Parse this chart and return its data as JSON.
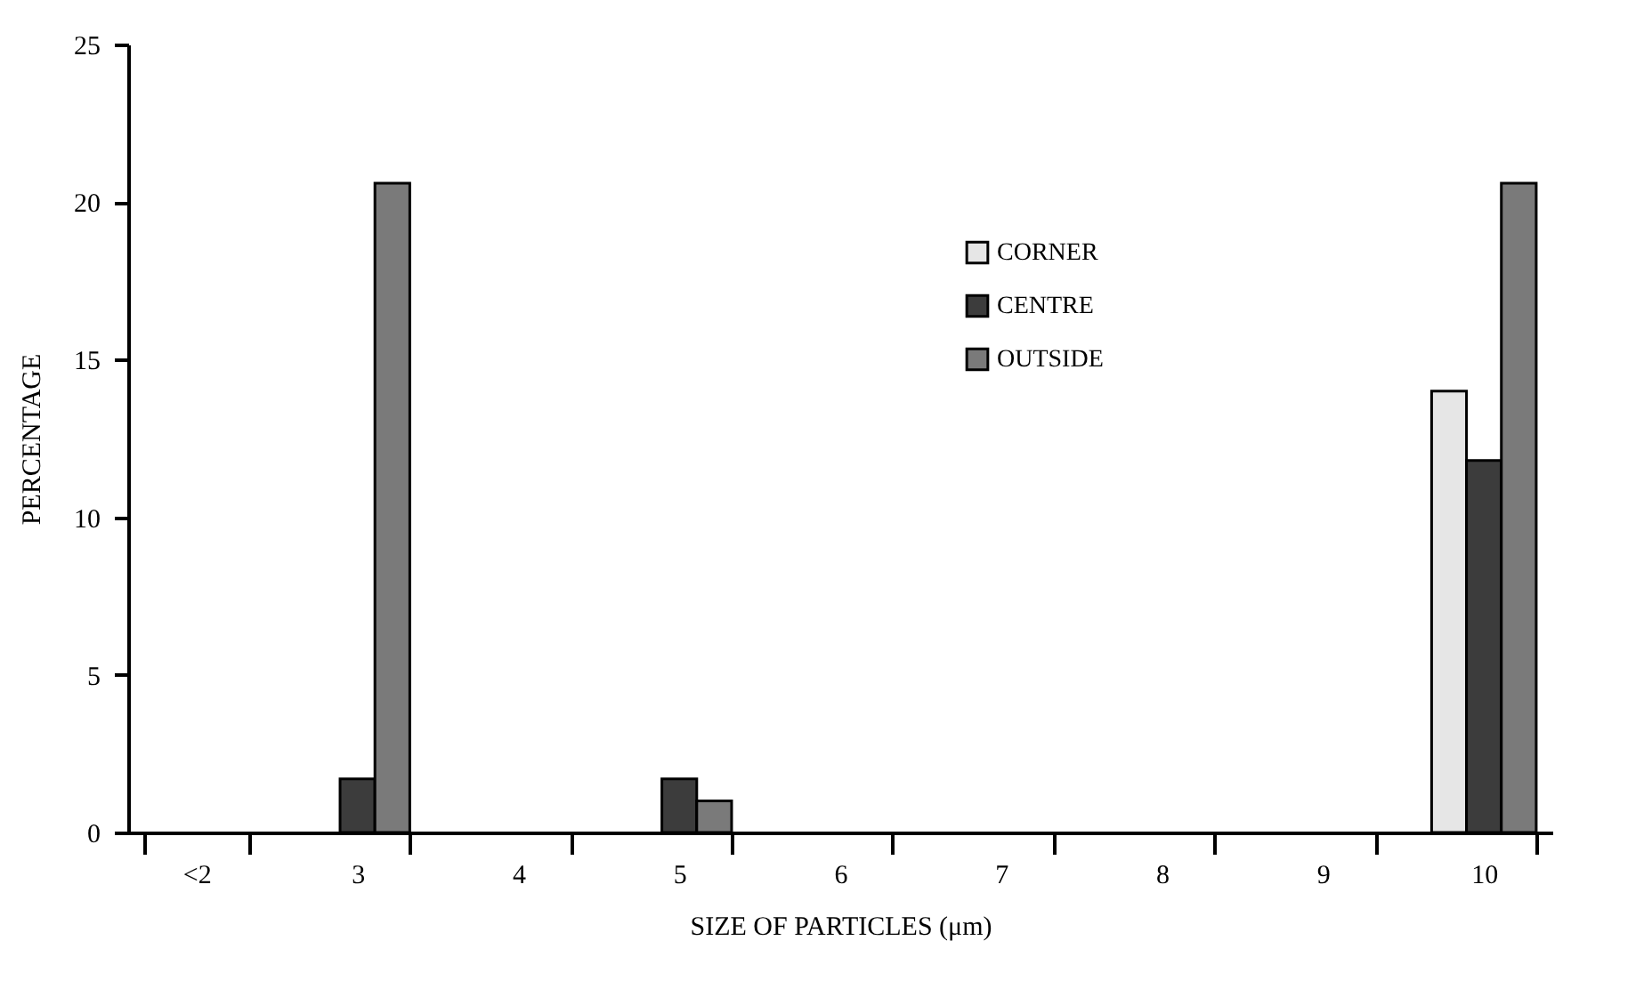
{
  "chart_data": {
    "type": "bar",
    "xlabel": "SIZE OF PARTICLES (μm)",
    "ylabel": "PERCENTAGE",
    "categories": [
      "<2",
      "3",
      "4",
      "5",
      "6",
      "7",
      "8",
      "9",
      "10"
    ],
    "series": [
      {
        "name": "CORNER",
        "color": "#e6e6e6",
        "values": [
          null,
          null,
          null,
          null,
          null,
          null,
          null,
          null,
          14.0
        ]
      },
      {
        "name": "CENTRE",
        "color": "#3c3c3c",
        "values": [
          null,
          1.7,
          null,
          1.7,
          null,
          null,
          null,
          null,
          11.8
        ]
      },
      {
        "name": "OUTSIDE",
        "color": "#7a7a7a",
        "values": [
          null,
          20.6,
          null,
          1.0,
          null,
          null,
          null,
          null,
          20.6
        ]
      }
    ],
    "ylim": [
      0,
      25
    ],
    "yticks": [
      0,
      5,
      10,
      15,
      20,
      25
    ],
    "grid": false,
    "legend": "top right"
  }
}
